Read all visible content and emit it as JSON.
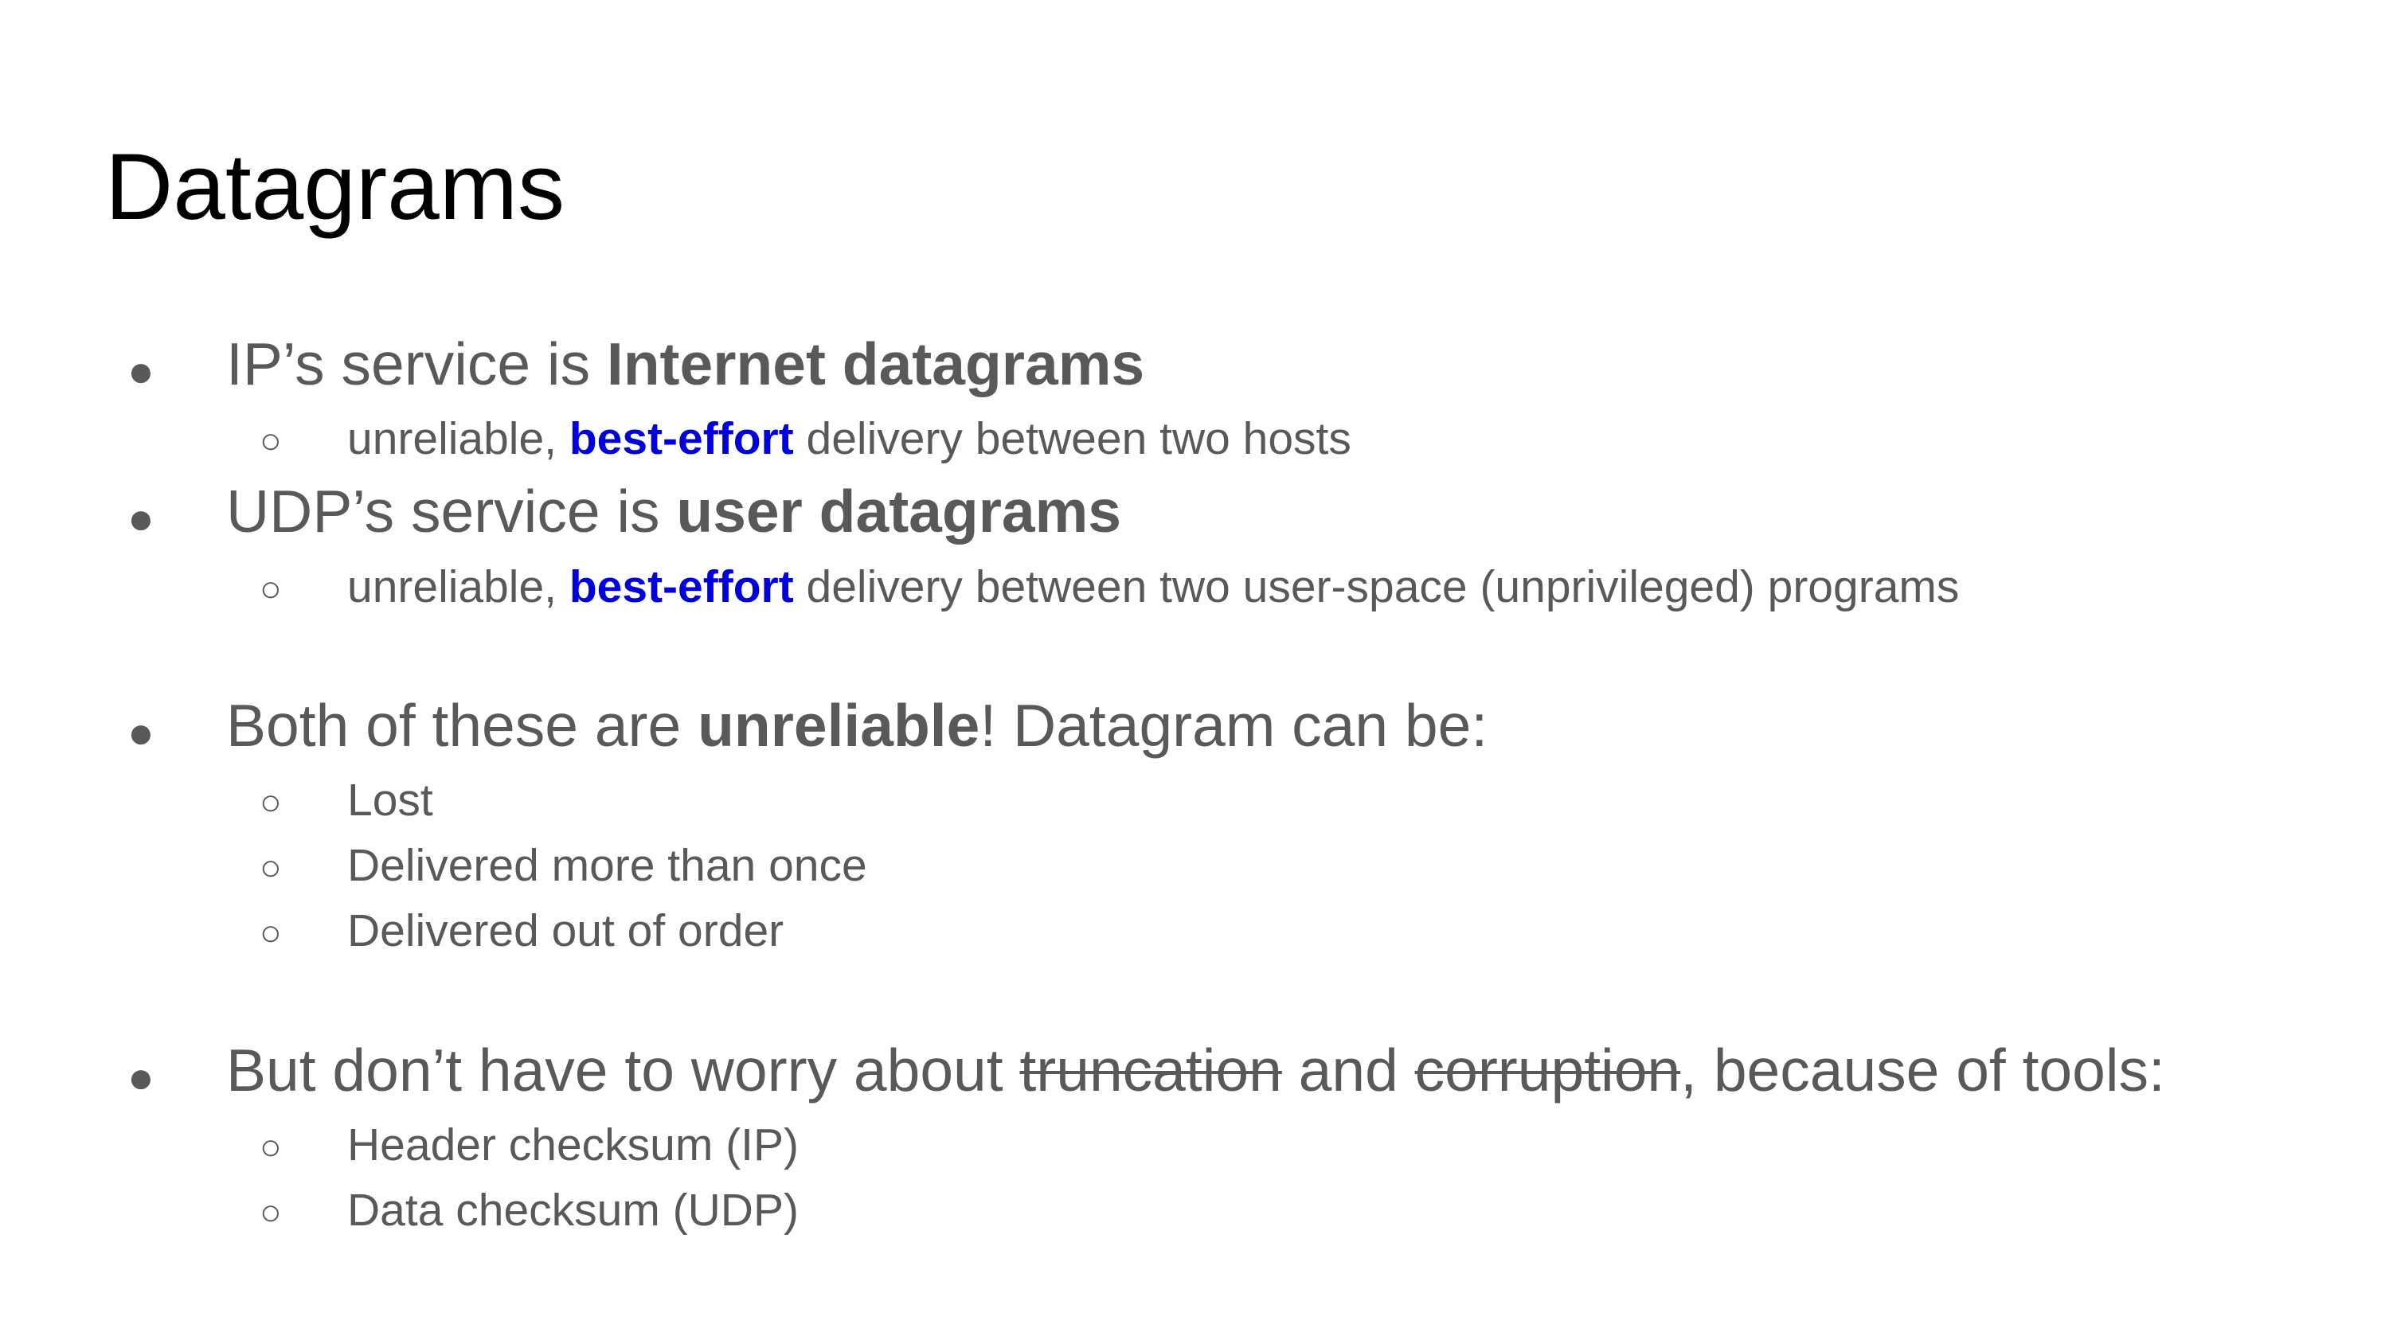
{
  "title": "Datagrams",
  "icons": {
    "level1": "●",
    "level2": "○"
  },
  "colors": {
    "text": "#595959",
    "title": "#000000",
    "highlight": "#0000dd"
  },
  "b1": {
    "pre": "IP’s service is ",
    "bold": "Internet datagrams",
    "sub": {
      "pre": "unreliable, ",
      "hl": "best-effort",
      "post": " delivery between two hosts"
    }
  },
  "b2": {
    "pre": "UDP’s service is ",
    "bold": "user datagrams",
    "sub": {
      "pre": "unreliable, ",
      "hl": "best-effort",
      "post": " delivery between two user-space (unprivileged) programs"
    }
  },
  "b3": {
    "pre": "Both of these are ",
    "bold": "unreliable",
    "post": "! Datagram can be:",
    "subs": [
      "Lost",
      "Delivered more than once",
      "Delivered out of order"
    ]
  },
  "b4": {
    "pre": "But don’t have to worry about ",
    "strike1": "truncation",
    "mid": " and ",
    "strike2": "corruption",
    "post": ", because of tools:",
    "subs": [
      "Header checksum (IP)",
      "Data checksum (UDP)"
    ]
  }
}
